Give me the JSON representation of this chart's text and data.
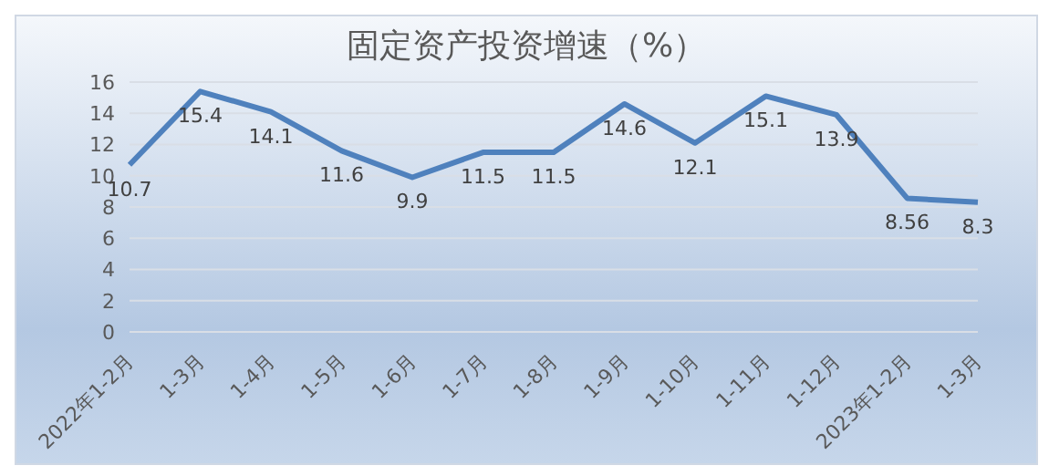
{
  "chart_data": {
    "type": "line",
    "title": "固定资产投资增速（%）",
    "categories": [
      "2022年1-2月",
      "1-3月",
      "1-4月",
      "1-5月",
      "1-6月",
      "1-7月",
      "1-8月",
      "1-9月",
      "1-10月",
      "1-11月",
      "1-12月",
      "2023年1-2月",
      "1-3月"
    ],
    "series": [
      {
        "color": "#4f81bd",
        "values": [
          10.7,
          15.4,
          14.1,
          11.6,
          9.9,
          11.5,
          11.5,
          14.6,
          12.1,
          15.1,
          13.9,
          8.56,
          8.3
        ]
      }
    ],
    "ylim": [
      0,
      16
    ],
    "yticks": [
      0,
      2,
      4,
      6,
      8,
      10,
      12,
      14,
      16
    ],
    "grid": "y",
    "data_labels": true,
    "marker": "none",
    "line_style": "solid",
    "legend": false
  }
}
